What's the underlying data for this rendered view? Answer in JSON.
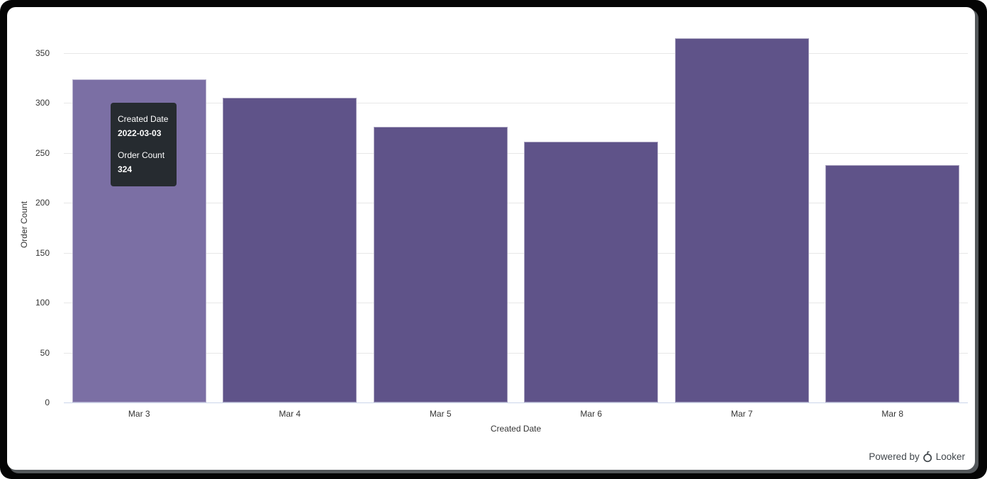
{
  "tooltip": {
    "rows": [
      {
        "label": "Created Date",
        "value": "2022-03-03"
      },
      {
        "label": "Order Count",
        "value": "324"
      }
    ]
  },
  "footer": {
    "powered_by_label": "Powered by",
    "brand_label": "Looker",
    "looker_logo_icon": "looker-logo-icon"
  },
  "colors": {
    "bar": "#5f5389",
    "bar_hover": "#7b6fa4",
    "tooltip_background": "#262b30",
    "gridline": "#e7e7e7",
    "axis_line": "#ccd6eb",
    "tick_text": "#343434",
    "powered_by_text": "#40464b",
    "frame_background": "#050505",
    "card_background": "#ffffff"
  },
  "chart_data": {
    "type": "bar",
    "title": "",
    "categories": [
      "Mar 3",
      "Mar 4",
      "Mar 5",
      "Mar 6",
      "Mar 7",
      "Mar 8"
    ],
    "values": [
      324,
      305,
      276,
      261,
      365,
      238
    ],
    "xlabel": "Created Date",
    "ylabel": "Order Count",
    "ylim": [
      0,
      370
    ],
    "yticks": [
      0,
      50,
      100,
      150,
      200,
      250,
      300,
      350
    ],
    "grid": true,
    "legend": "none",
    "hovered_index": 0,
    "hovered_tooltip": {
      "x": "2022-03-03",
      "y": 324
    }
  }
}
